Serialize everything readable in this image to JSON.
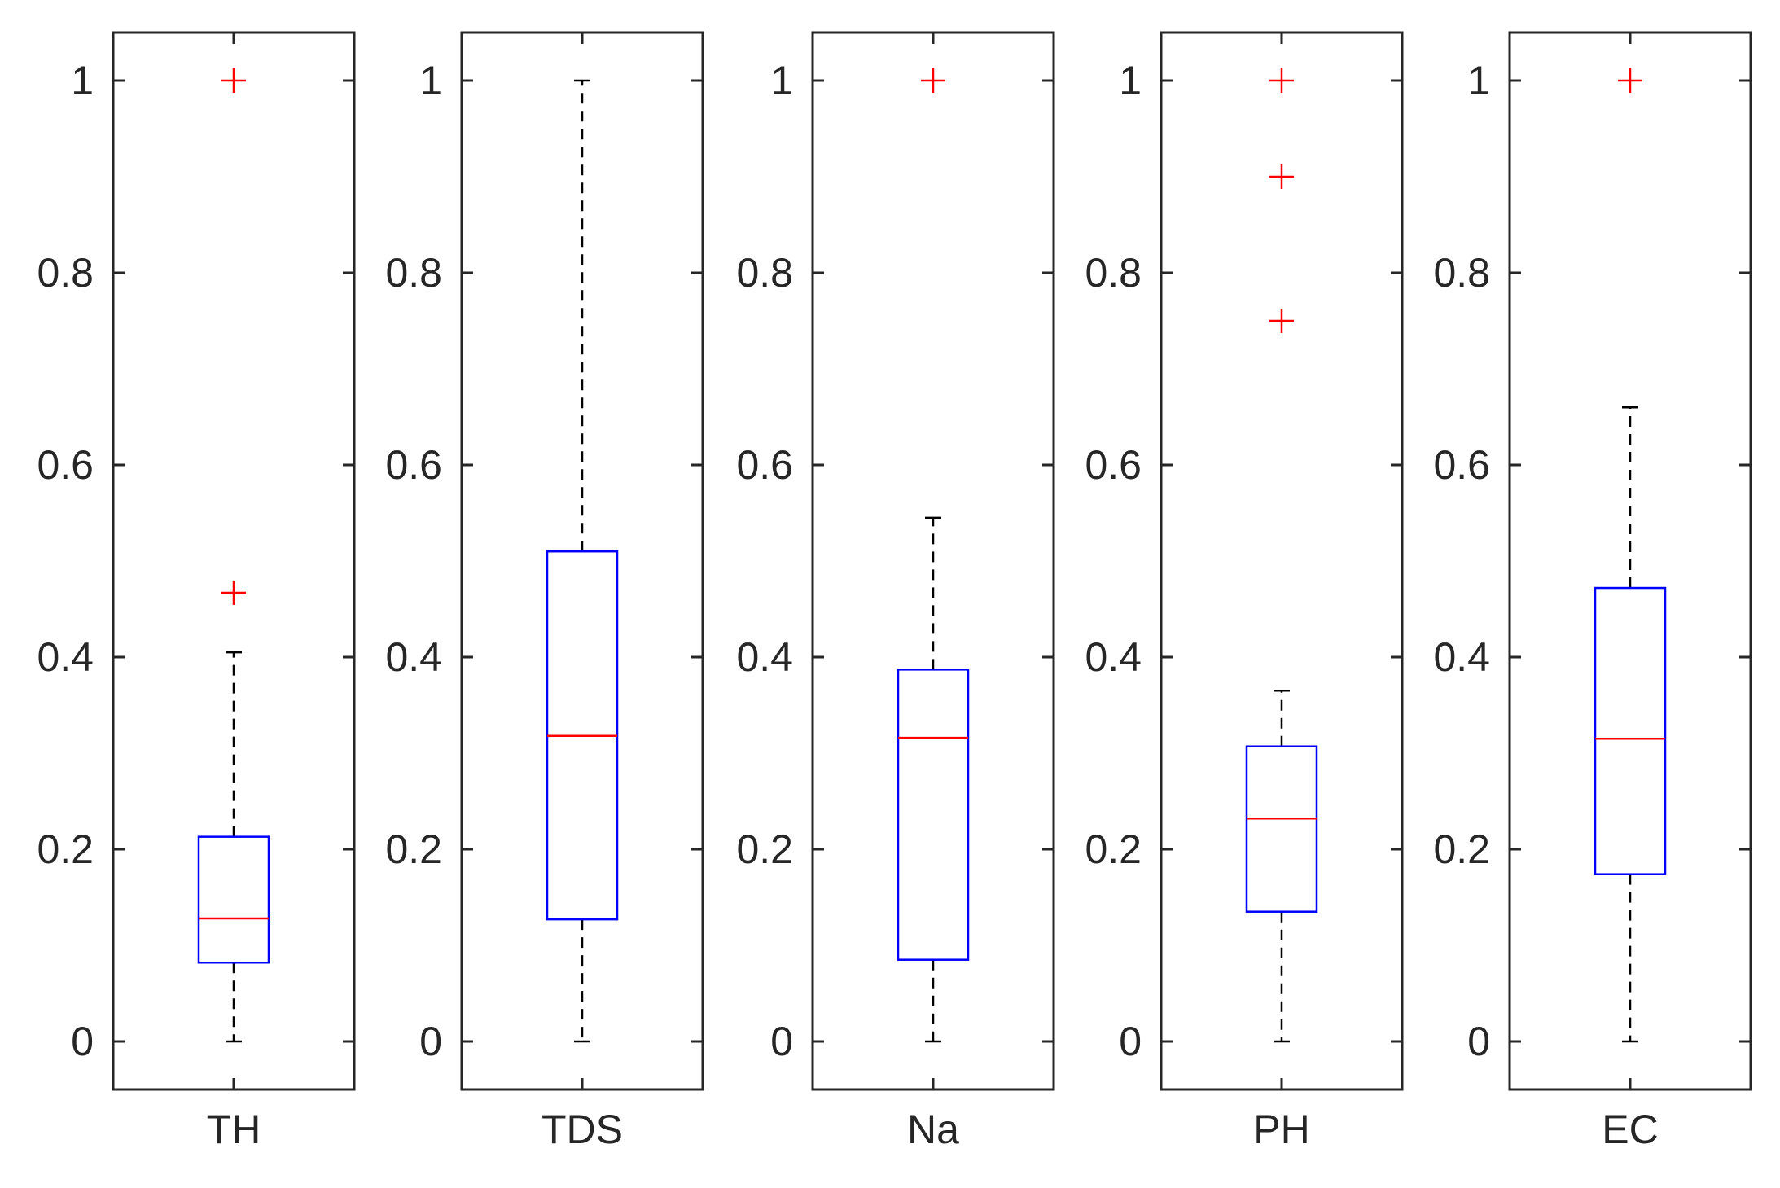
{
  "chart_data": {
    "type": "boxplot",
    "title": "",
    "ylim": [
      -0.05,
      1.05
    ],
    "yticks": [
      {
        "value": 0,
        "label": "0"
      },
      {
        "value": 0.2,
        "label": "0.2"
      },
      {
        "value": 0.4,
        "label": "0.4"
      },
      {
        "value": 0.6,
        "label": "0.6"
      },
      {
        "value": 0.8,
        "label": "0.8"
      },
      {
        "value": 1,
        "label": "1"
      }
    ],
    "colors": {
      "axis": "#262626",
      "box": "#0000ff",
      "median": "#ff0000",
      "whisker": "#000000",
      "outlier": "#ff0000"
    },
    "panels": [
      {
        "label": "TH",
        "whisker_low": 0,
        "q1": 0.082,
        "median": 0.128,
        "q3": 0.213,
        "whisker_high": 0.405,
        "outliers": [
          0.467,
          1.0
        ]
      },
      {
        "label": "TDS",
        "whisker_low": 0,
        "q1": 0.127,
        "median": 0.318,
        "q3": 0.51,
        "whisker_high": 1.0,
        "outliers": []
      },
      {
        "label": "Na",
        "whisker_low": 0,
        "q1": 0.085,
        "median": 0.316,
        "q3": 0.387,
        "whisker_high": 0.545,
        "outliers": [
          1.0
        ]
      },
      {
        "label": "PH",
        "whisker_low": 0,
        "q1": 0.135,
        "median": 0.232,
        "q3": 0.307,
        "whisker_high": 0.365,
        "outliers": [
          0.75,
          0.9,
          1.0
        ]
      },
      {
        "label": "EC",
        "whisker_low": 0,
        "q1": 0.174,
        "median": 0.315,
        "q3": 0.472,
        "whisker_high": 0.66,
        "outliers": [
          1.0
        ]
      }
    ]
  }
}
